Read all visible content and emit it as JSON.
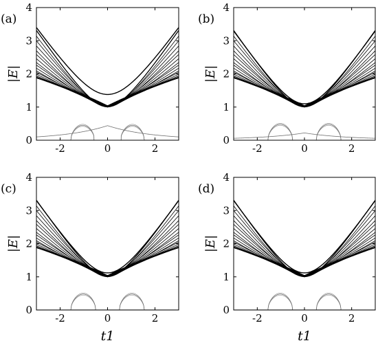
{
  "chart_data": [
    {
      "type": "line",
      "panel_label": "(a)",
      "ylabel": "|E|",
      "xlabel": "",
      "xlim": [
        -3,
        3
      ],
      "ylim": [
        0,
        4
      ],
      "xticks": [
        -2,
        0,
        2
      ],
      "yticks": [
        0,
        1,
        2,
        3,
        4
      ],
      "xtick_labels": [
        "-2",
        "0",
        "2"
      ],
      "ytick_labels": [
        "0",
        "1",
        "2",
        "3",
        "4"
      ],
      "grid": false,
      "n_bands": 20,
      "band_gap_min": 1.0,
      "band_slope": 1.0,
      "top_band_min": 1.38,
      "edge_state_max": 0.45,
      "end_state_peak": 0.42,
      "edge_arches": [
        {
          "x_from": -1.55,
          "x_to": -0.55,
          "peak": 0.45
        },
        {
          "x_from": 0.55,
          "x_to": 1.55,
          "peak": 0.45
        }
      ]
    },
    {
      "type": "line",
      "panel_label": "(b)",
      "ylabel": "|E|",
      "xlabel": "",
      "xlim": [
        -3,
        3
      ],
      "ylim": [
        0,
        4
      ],
      "xticks": [
        -2,
        0,
        2
      ],
      "yticks": [
        0,
        1,
        2,
        3,
        4
      ],
      "xtick_labels": [
        "-2",
        "0",
        "2"
      ],
      "ytick_labels": [
        "0",
        "1",
        "2",
        "3",
        "4"
      ],
      "grid": false,
      "n_bands": 20,
      "band_gap_min": 1.0,
      "band_slope": 1.0,
      "top_band_min": 1.1,
      "edge_state_max": 0.48,
      "end_state_peak": 0.2,
      "edge_arches": [
        {
          "x_from": -1.55,
          "x_to": -0.5,
          "peak": 0.48
        },
        {
          "x_from": 0.5,
          "x_to": 1.55,
          "peak": 0.48
        }
      ]
    },
    {
      "type": "line",
      "panel_label": "(c)",
      "ylabel": "|E|",
      "xlabel": "t1",
      "xlim": [
        -3,
        3
      ],
      "ylim": [
        0,
        4
      ],
      "xticks": [
        -2,
        0,
        2
      ],
      "yticks": [
        0,
        1,
        2,
        3,
        4
      ],
      "xtick_labels": [
        "-2",
        "0",
        "2"
      ],
      "ytick_labels": [
        "0",
        "1",
        "2",
        "3",
        "4"
      ],
      "grid": false,
      "n_bands": 20,
      "band_gap_min": 1.0,
      "band_slope": 1.0,
      "top_band_min": 1.12,
      "edge_state_max": 0.48,
      "end_state_peak": 0.0,
      "edge_arches": [
        {
          "x_from": -1.55,
          "x_to": -0.5,
          "peak": 0.48
        },
        {
          "x_from": 0.5,
          "x_to": 1.55,
          "peak": 0.48
        }
      ]
    },
    {
      "type": "line",
      "panel_label": "(d)",
      "ylabel": "|E|",
      "xlabel": "t1",
      "xlim": [
        -3,
        3
      ],
      "ylim": [
        0,
        4
      ],
      "xticks": [
        -2,
        0,
        2
      ],
      "yticks": [
        0,
        1,
        2,
        3,
        4
      ],
      "xtick_labels": [
        "-2",
        "0",
        "2"
      ],
      "ytick_labels": [
        "0",
        "1",
        "2",
        "3",
        "4"
      ],
      "grid": false,
      "n_bands": 20,
      "band_gap_min": 1.0,
      "band_slope": 1.0,
      "top_band_min": 1.12,
      "edge_state_max": 0.48,
      "end_state_peak": 0.0,
      "edge_arches": [
        {
          "x_from": -1.55,
          "x_to": -0.5,
          "peak": 0.48
        },
        {
          "x_from": 0.5,
          "x_to": 1.55,
          "peak": 0.48
        }
      ]
    }
  ],
  "colors": {
    "band_line": "#000000",
    "edge_line": "#6e6e6e",
    "axis": "#000000",
    "background": "#ffffff"
  }
}
